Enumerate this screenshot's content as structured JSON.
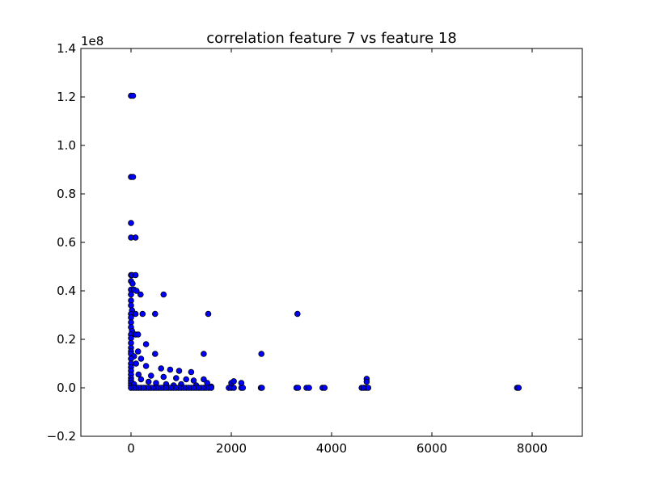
{
  "chart_data": {
    "type": "scatter",
    "title": "correlation feature 7 vs feature 18",
    "xlabel": "",
    "ylabel": "",
    "xlim": [
      -1000,
      9000
    ],
    "ylim": [
      -0.2,
      1.4
    ],
    "y_offset_label": "1e8",
    "xticks": [
      0,
      2000,
      4000,
      6000,
      8000
    ],
    "xtick_labels": [
      "0",
      "2000",
      "4000",
      "6000",
      "8000"
    ],
    "yticks": [
      -0.2,
      0.0,
      0.2,
      0.4,
      0.6,
      0.8,
      1.0,
      1.2,
      1.4
    ],
    "ytick_labels": [
      "−0.2",
      "0.0",
      "0.2",
      "0.4",
      "0.6",
      "0.8",
      "1.0",
      "1.2",
      "1.4"
    ],
    "grid": false,
    "marker_color": "#0000ff",
    "marker_edge_color": "#000000",
    "points": [
      [
        0,
        1.205
      ],
      [
        40,
        1.205
      ],
      [
        0,
        0.87
      ],
      [
        40,
        0.87
      ],
      [
        0,
        0.68
      ],
      [
        0,
        0.62
      ],
      [
        90,
        0.62
      ],
      [
        0,
        0.465
      ],
      [
        20,
        0.465
      ],
      [
        90,
        0.465
      ],
      [
        0,
        0.44
      ],
      [
        30,
        0.43
      ],
      [
        0,
        0.405
      ],
      [
        60,
        0.405
      ],
      [
        110,
        0.4
      ],
      [
        0,
        0.385
      ],
      [
        190,
        0.385
      ],
      [
        650,
        0.385
      ],
      [
        0,
        0.36
      ],
      [
        0,
        0.34
      ],
      [
        20,
        0.32
      ],
      [
        0,
        0.305
      ],
      [
        90,
        0.305
      ],
      [
        230,
        0.305
      ],
      [
        480,
        0.305
      ],
      [
        1540,
        0.305
      ],
      [
        3320,
        0.305
      ],
      [
        0,
        0.29
      ],
      [
        0,
        0.27
      ],
      [
        0,
        0.25
      ],
      [
        20,
        0.235
      ],
      [
        0,
        0.22
      ],
      [
        90,
        0.22
      ],
      [
        140,
        0.22
      ],
      [
        0,
        0.205
      ],
      [
        0,
        0.185
      ],
      [
        300,
        0.18
      ],
      [
        0,
        0.165
      ],
      [
        0,
        0.15
      ],
      [
        140,
        0.15
      ],
      [
        0,
        0.14
      ],
      [
        480,
        0.14
      ],
      [
        1450,
        0.14
      ],
      [
        2600,
        0.14
      ],
      [
        60,
        0.13
      ],
      [
        0,
        0.12
      ],
      [
        200,
        0.12
      ],
      [
        0,
        0.1
      ],
      [
        100,
        0.1
      ],
      [
        300,
        0.09
      ],
      [
        0,
        0.085
      ],
      [
        600,
        0.08
      ],
      [
        780,
        0.075
      ],
      [
        0,
        0.07
      ],
      [
        960,
        0.07
      ],
      [
        1200,
        0.065
      ],
      [
        0,
        0.055
      ],
      [
        150,
        0.055
      ],
      [
        400,
        0.05
      ],
      [
        650,
        0.045
      ],
      [
        900,
        0.04
      ],
      [
        1100,
        0.035
      ],
      [
        1250,
        0.03
      ],
      [
        1450,
        0.035
      ],
      [
        1520,
        0.02
      ],
      [
        2000,
        0.02
      ],
      [
        2050,
        0.027
      ],
      [
        2200,
        0.02
      ],
      [
        4700,
        0.037
      ],
      [
        4700,
        0.025
      ],
      [
        0,
        0.04
      ],
      [
        200,
        0.035
      ],
      [
        350,
        0.025
      ],
      [
        500,
        0.02
      ],
      [
        700,
        0.015
      ],
      [
        850,
        0.01
      ],
      [
        1000,
        0.015
      ],
      [
        1300,
        0.01
      ],
      [
        1600,
        0.005
      ],
      [
        0,
        0.03
      ],
      [
        0,
        0.02
      ],
      [
        0,
        0.01
      ],
      [
        60,
        0.015
      ],
      [
        0,
        0.0
      ],
      [
        50,
        0.0
      ],
      [
        100,
        0.0
      ],
      [
        150,
        0.0
      ],
      [
        200,
        0.0
      ],
      [
        250,
        0.0
      ],
      [
        300,
        0.0
      ],
      [
        350,
        0.0
      ],
      [
        400,
        0.0
      ],
      [
        450,
        0.0
      ],
      [
        500,
        0.0
      ],
      [
        550,
        0.0
      ],
      [
        600,
        0.0
      ],
      [
        650,
        0.0
      ],
      [
        700,
        0.0
      ],
      [
        750,
        0.0
      ],
      [
        800,
        0.0
      ],
      [
        850,
        0.0
      ],
      [
        900,
        0.0
      ],
      [
        950,
        0.0
      ],
      [
        1000,
        0.0
      ],
      [
        1050,
        0.0
      ],
      [
        1100,
        0.0
      ],
      [
        1150,
        0.0
      ],
      [
        1200,
        0.0
      ],
      [
        1250,
        0.0
      ],
      [
        1300,
        0.0
      ],
      [
        1350,
        0.0
      ],
      [
        1400,
        0.0
      ],
      [
        1450,
        0.0
      ],
      [
        1500,
        0.0
      ],
      [
        1550,
        0.0
      ],
      [
        1600,
        0.0
      ],
      [
        1950,
        0.0
      ],
      [
        2000,
        0.0
      ],
      [
        2050,
        0.0
      ],
      [
        2200,
        0.0
      ],
      [
        2230,
        0.0
      ],
      [
        2590,
        0.0
      ],
      [
        2610,
        0.0
      ],
      [
        3300,
        0.0
      ],
      [
        3330,
        0.0
      ],
      [
        3500,
        0.0
      ],
      [
        3550,
        0.0
      ],
      [
        3820,
        0.0
      ],
      [
        3860,
        0.0
      ],
      [
        4600,
        0.0
      ],
      [
        4640,
        0.0
      ],
      [
        4690,
        0.0
      ],
      [
        4730,
        0.0
      ],
      [
        7700,
        0.0
      ],
      [
        7730,
        0.0
      ]
    ]
  }
}
